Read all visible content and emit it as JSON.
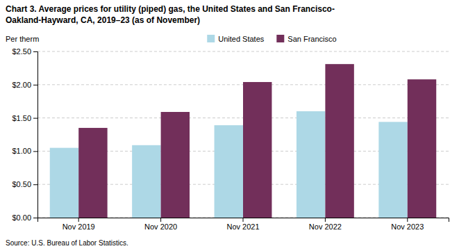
{
  "chart_data": {
    "type": "bar",
    "title": "Chart 3. Average prices for utility (piped) gas, the United States and San Francisco-",
    "subtitle": "Oakland-Hayward, CA, 2019–23 (as of November)",
    "ylabel": "Per therm",
    "source": "Source: U.S. Bureau of Labor Statistics.",
    "categories": [
      "Nov 2019",
      "Nov 2020",
      "Nov 2021",
      "Nov 2022",
      "Nov 2023"
    ],
    "series": [
      {
        "name": "United States",
        "color": "#add8e6",
        "values": [
          1.05,
          1.09,
          1.39,
          1.6,
          1.44
        ]
      },
      {
        "name": "San Francisco",
        "color": "#722F5A",
        "values": [
          1.35,
          1.59,
          2.04,
          2.31,
          2.08
        ]
      }
    ],
    "ylim": [
      0,
      2.5
    ],
    "yticks": [
      {
        "value": 0.0,
        "label": "$0.00"
      },
      {
        "value": 0.5,
        "label": "$0.50"
      },
      {
        "value": 1.0,
        "label": "$1.00"
      },
      {
        "value": 1.5,
        "label": "$1.50"
      },
      {
        "value": 2.0,
        "label": "$2.00"
      },
      {
        "value": 2.5,
        "label": "$2.50"
      }
    ],
    "grid": true,
    "legend": "top"
  }
}
